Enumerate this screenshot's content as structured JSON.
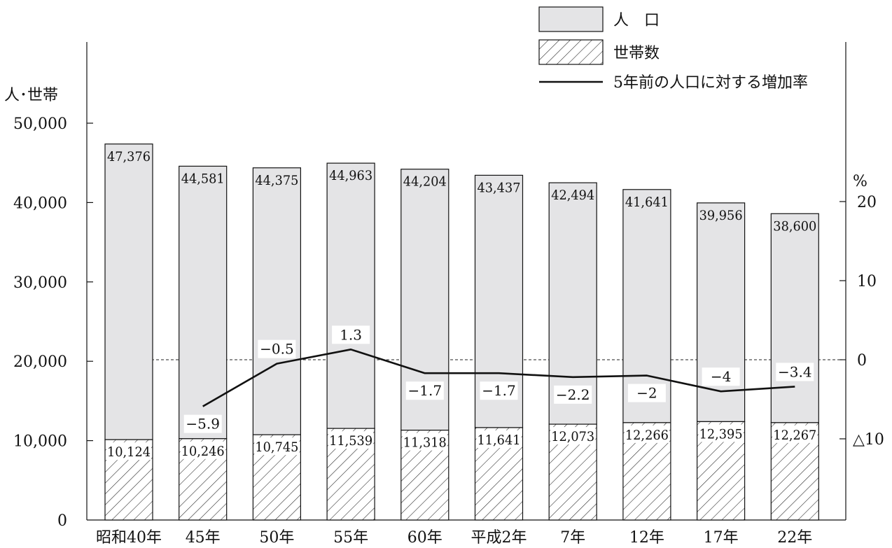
{
  "chart_data": {
    "type": "bar",
    "categories": [
      "昭和40年",
      "45年",
      "50年",
      "55年",
      "60年",
      "平成2年",
      "7年",
      "12年",
      "17年",
      "22年"
    ],
    "series": [
      {
        "name": "人　口",
        "kind": "bar",
        "values": [
          47376,
          44581,
          44375,
          44963,
          44204,
          43437,
          42494,
          41641,
          39956,
          38600
        ],
        "labels": [
          "47,376",
          "44,581",
          "44,375",
          "44,963",
          "44,204",
          "43,437",
          "42,494",
          "41,641",
          "39,956",
          "38,600"
        ],
        "fill": "#e4e4e6"
      },
      {
        "name": "世帯数",
        "kind": "bar-hatched",
        "values": [
          10124,
          10246,
          10745,
          11539,
          11318,
          11641,
          12073,
          12266,
          12395,
          12267
        ],
        "labels": [
          "10,124",
          "10,246",
          "10,745",
          "11,539",
          "11,318",
          "11,641",
          "12,073",
          "12,266",
          "12,395",
          "12,267"
        ],
        "fill": "#ffffff"
      },
      {
        "name": "5年前の人口に対する増加率",
        "kind": "line",
        "axis": "right",
        "values": [
          null,
          -5.9,
          -0.5,
          1.3,
          -1.7,
          -1.7,
          -2.2,
          -2,
          -4,
          -3.4
        ],
        "labels": [
          "",
          "−5.9",
          "−0.5",
          "1.3",
          "−1.7",
          "−1.7",
          "−2.2",
          "−2",
          "−4",
          "−3.4"
        ]
      }
    ],
    "ylabel": "人･世帯",
    "ylim": [
      0,
      50000
    ],
    "yticks": [
      "0",
      "10,000",
      "20,000",
      "30,000",
      "40,000",
      "50,000"
    ],
    "y2label": "%",
    "y2lim": [
      -10,
      20
    ],
    "y2ticks": [
      {
        "value": 20,
        "label": "20"
      },
      {
        "value": 10,
        "label": "10"
      },
      {
        "value": 0,
        "label": "0"
      },
      {
        "value": -10,
        "label": "△10"
      }
    ],
    "zero_reference_line": "dashed",
    "legend": "top-right",
    "grid": false
  }
}
